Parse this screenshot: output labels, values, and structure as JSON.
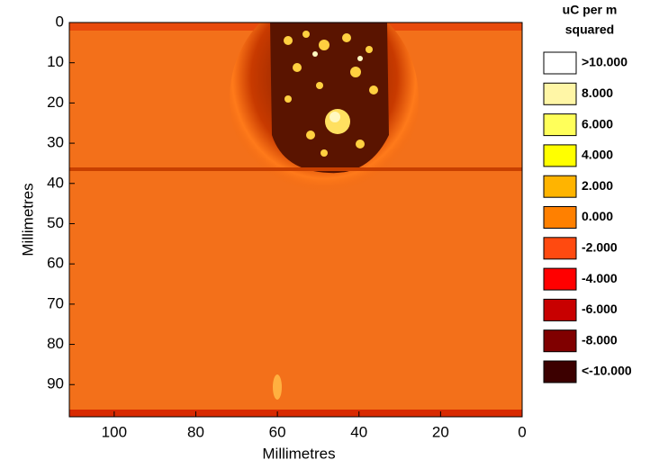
{
  "chart_data": {
    "type": "heatmap",
    "xlabel": "Millimetres",
    "ylabel": "Millimetres",
    "xlim": [
      111,
      0
    ],
    "xticks": [
      100,
      80,
      60,
      40,
      20,
      0
    ],
    "ylim": [
      0,
      98
    ],
    "yticks": [
      0,
      10,
      20,
      30,
      40,
      50,
      60,
      70,
      80,
      90
    ],
    "legend": {
      "title": [
        "uC per m",
        "squared"
      ],
      "entries": [
        {
          "label": ">10.000",
          "color": "#ffffff"
        },
        {
          "label": "8.000",
          "color": "#fff6a6"
        },
        {
          "label": "6.000",
          "color": "#ffff5a"
        },
        {
          "label": "4.000",
          "color": "#ffff00"
        },
        {
          "label": "2.000",
          "color": "#ffb400"
        },
        {
          "label": "0.000",
          "color": "#ff8000"
        },
        {
          "label": "-2.000",
          "color": "#ff4a10"
        },
        {
          "label": "-4.000",
          "color": "#ff0000"
        },
        {
          "label": "-6.000",
          "color": "#c80000"
        },
        {
          "label": "-8.000",
          "color": "#800000"
        },
        {
          "label": "<-10.000",
          "color": "#3c0000"
        }
      ]
    }
  }
}
